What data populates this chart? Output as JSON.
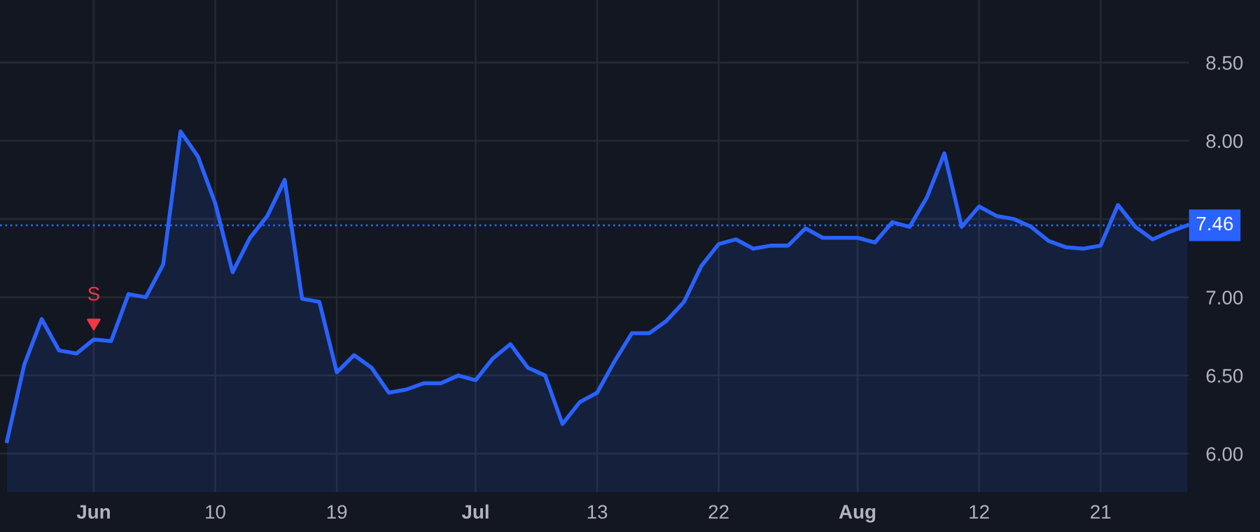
{
  "chart_data": {
    "type": "area",
    "categories": [
      null,
      null,
      null,
      null,
      null,
      "Jun",
      null,
      null,
      null,
      null,
      null,
      null,
      "10",
      null,
      null,
      null,
      null,
      null,
      null,
      "19",
      null,
      null,
      null,
      null,
      null,
      null,
      null,
      "Jul",
      null,
      null,
      null,
      null,
      null,
      null,
      "13",
      null,
      null,
      null,
      null,
      null,
      null,
      "22",
      null,
      null,
      null,
      null,
      null,
      null,
      null,
      "Aug",
      null,
      null,
      null,
      null,
      null,
      null,
      "12",
      null,
      null,
      null,
      null,
      null,
      null,
      "21",
      null,
      null,
      null,
      null,
      null
    ],
    "series": [
      {
        "color": "#2962ff",
        "values": [
          6.08,
          6.57,
          6.86,
          6.66,
          6.64,
          6.73,
          6.72,
          7.02,
          7.0,
          7.21,
          8.06,
          7.9,
          7.6,
          7.16,
          7.38,
          7.52,
          7.75,
          6.99,
          6.97,
          6.52,
          6.63,
          6.55,
          6.39,
          6.41,
          6.45,
          6.45,
          6.5,
          6.47,
          6.61,
          6.7,
          6.55,
          6.5,
          6.19,
          6.33,
          6.39,
          6.59,
          6.77,
          6.77,
          6.85,
          6.97,
          7.2,
          7.34,
          7.37,
          7.31,
          7.33,
          7.33,
          7.44,
          7.38,
          7.38,
          7.38,
          7.35,
          7.48,
          7.45,
          7.64,
          7.92,
          7.45,
          7.58,
          7.52,
          7.5,
          7.45,
          7.36,
          7.32,
          7.31,
          7.33,
          7.59,
          7.45,
          7.37,
          7.42,
          7.46
        ]
      }
    ],
    "ylim": [
      5.75,
      8.9
    ],
    "yticks": [
      {
        "value": 6.0,
        "label": "6.00"
      },
      {
        "value": 6.5,
        "label": "6.50"
      },
      {
        "value": 7.0,
        "label": "7.00"
      },
      {
        "value": 7.5,
        "label": null
      },
      {
        "value": 8.0,
        "label": "8.00"
      },
      {
        "value": 8.5,
        "label": "8.50"
      }
    ],
    "grid": true,
    "line_style": "solid",
    "marker": "none",
    "ref_lines": [
      {
        "axis": "y",
        "value": 7.46,
        "label": "7.46",
        "color": "#2962ff",
        "line_style": "dotted"
      }
    ],
    "annotations": [
      {
        "text": "S",
        "x": "Jun",
        "y": 6.73
      }
    ]
  }
}
